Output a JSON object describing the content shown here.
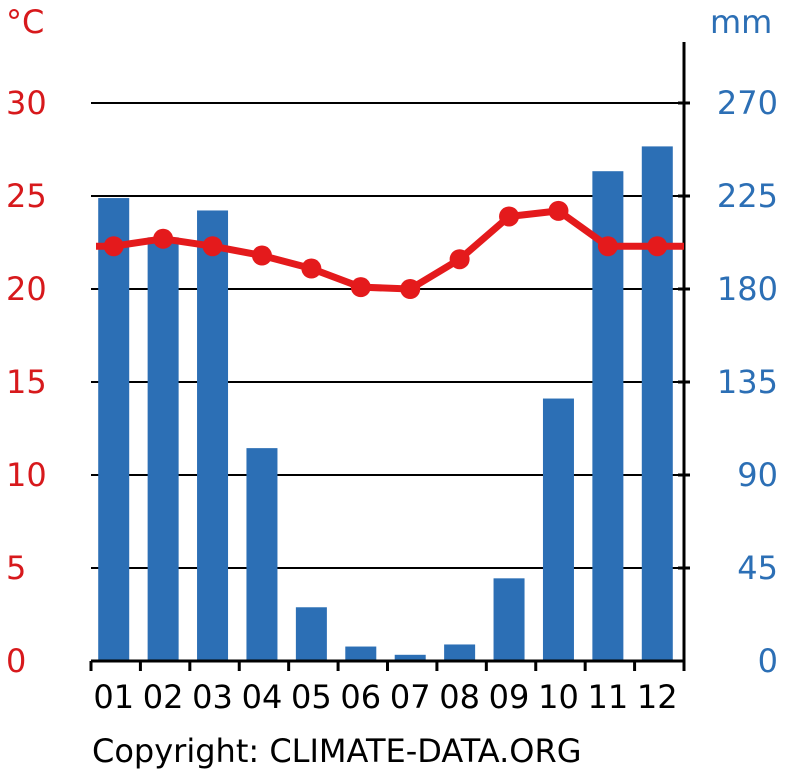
{
  "chart_data": {
    "type": "bar+line",
    "categories": [
      "01",
      "02",
      "03",
      "04",
      "05",
      "06",
      "07",
      "08",
      "09",
      "10",
      "11",
      "12"
    ],
    "temperature": {
      "unit_label": "°C",
      "values": [
        22.3,
        22.7,
        22.3,
        21.8,
        21.1,
        20.1,
        20.0,
        21.6,
        23.9,
        24.2,
        22.3,
        22.3
      ],
      "ylim": [
        0,
        30
      ],
      "ticks": [
        "0",
        "5",
        "10",
        "15",
        "20",
        "25",
        "30"
      ]
    },
    "precipitation": {
      "unit_label": "mm",
      "values": [
        224,
        205,
        218,
        103,
        26,
        7,
        3,
        8,
        40,
        127,
        237,
        249
      ],
      "ylim": [
        0,
        270
      ],
      "ticks": [
        "0",
        "45",
        "90",
        "135",
        "180",
        "225",
        "270"
      ]
    },
    "grid": true,
    "colors": {
      "temperature": "#e41a1c",
      "precipitation": "#2c6fb5"
    }
  },
  "footer": {
    "copyright": "Copyright: CLIMATE-DATA.ORG"
  }
}
